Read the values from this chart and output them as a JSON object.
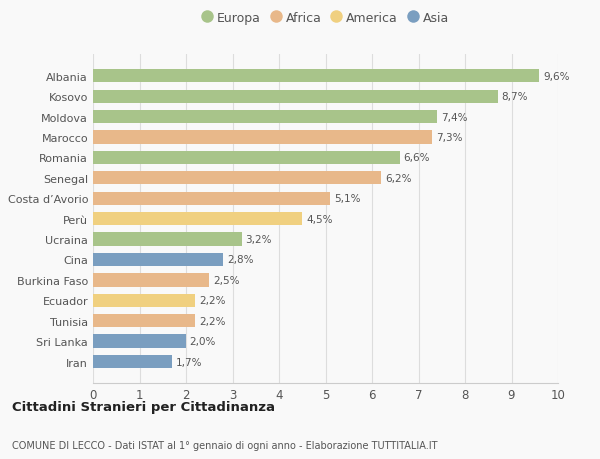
{
  "countries": [
    "Iran",
    "Sri Lanka",
    "Tunisia",
    "Ecuador",
    "Burkina Faso",
    "Cina",
    "Ucraina",
    "Perù",
    "Costa d’Avorio",
    "Senegal",
    "Romania",
    "Marocco",
    "Moldova",
    "Kosovo",
    "Albania"
  ],
  "values": [
    1.7,
    2.0,
    2.2,
    2.2,
    2.5,
    2.8,
    3.2,
    4.5,
    5.1,
    6.2,
    6.6,
    7.3,
    7.4,
    8.7,
    9.6
  ],
  "labels": [
    "1,7%",
    "2,0%",
    "2,2%",
    "2,2%",
    "2,5%",
    "2,8%",
    "3,2%",
    "4,5%",
    "5,1%",
    "6,2%",
    "6,6%",
    "7,3%",
    "7,4%",
    "8,7%",
    "9,6%"
  ],
  "continents": [
    "Asia",
    "Asia",
    "Africa",
    "America",
    "Africa",
    "Asia",
    "Europa",
    "America",
    "Africa",
    "Africa",
    "Europa",
    "Africa",
    "Europa",
    "Europa",
    "Europa"
  ],
  "colors": {
    "Europa": "#a8c48a",
    "Africa": "#e8b88a",
    "America": "#f0d080",
    "Asia": "#7a9ec0"
  },
  "xlim": [
    0,
    10
  ],
  "xticks": [
    0,
    1,
    2,
    3,
    4,
    5,
    6,
    7,
    8,
    9,
    10
  ],
  "title1": "Cittadini Stranieri per Cittadinanza",
  "title2": "COMUNE DI LECCO - Dati ISTAT al 1° gennaio di ogni anno - Elaborazione TUTTITALIA.IT",
  "background_color": "#f9f9f9",
  "grid_color": "#dddddd",
  "bar_height": 0.65,
  "legend_order": [
    "Europa",
    "Africa",
    "America",
    "Asia"
  ]
}
